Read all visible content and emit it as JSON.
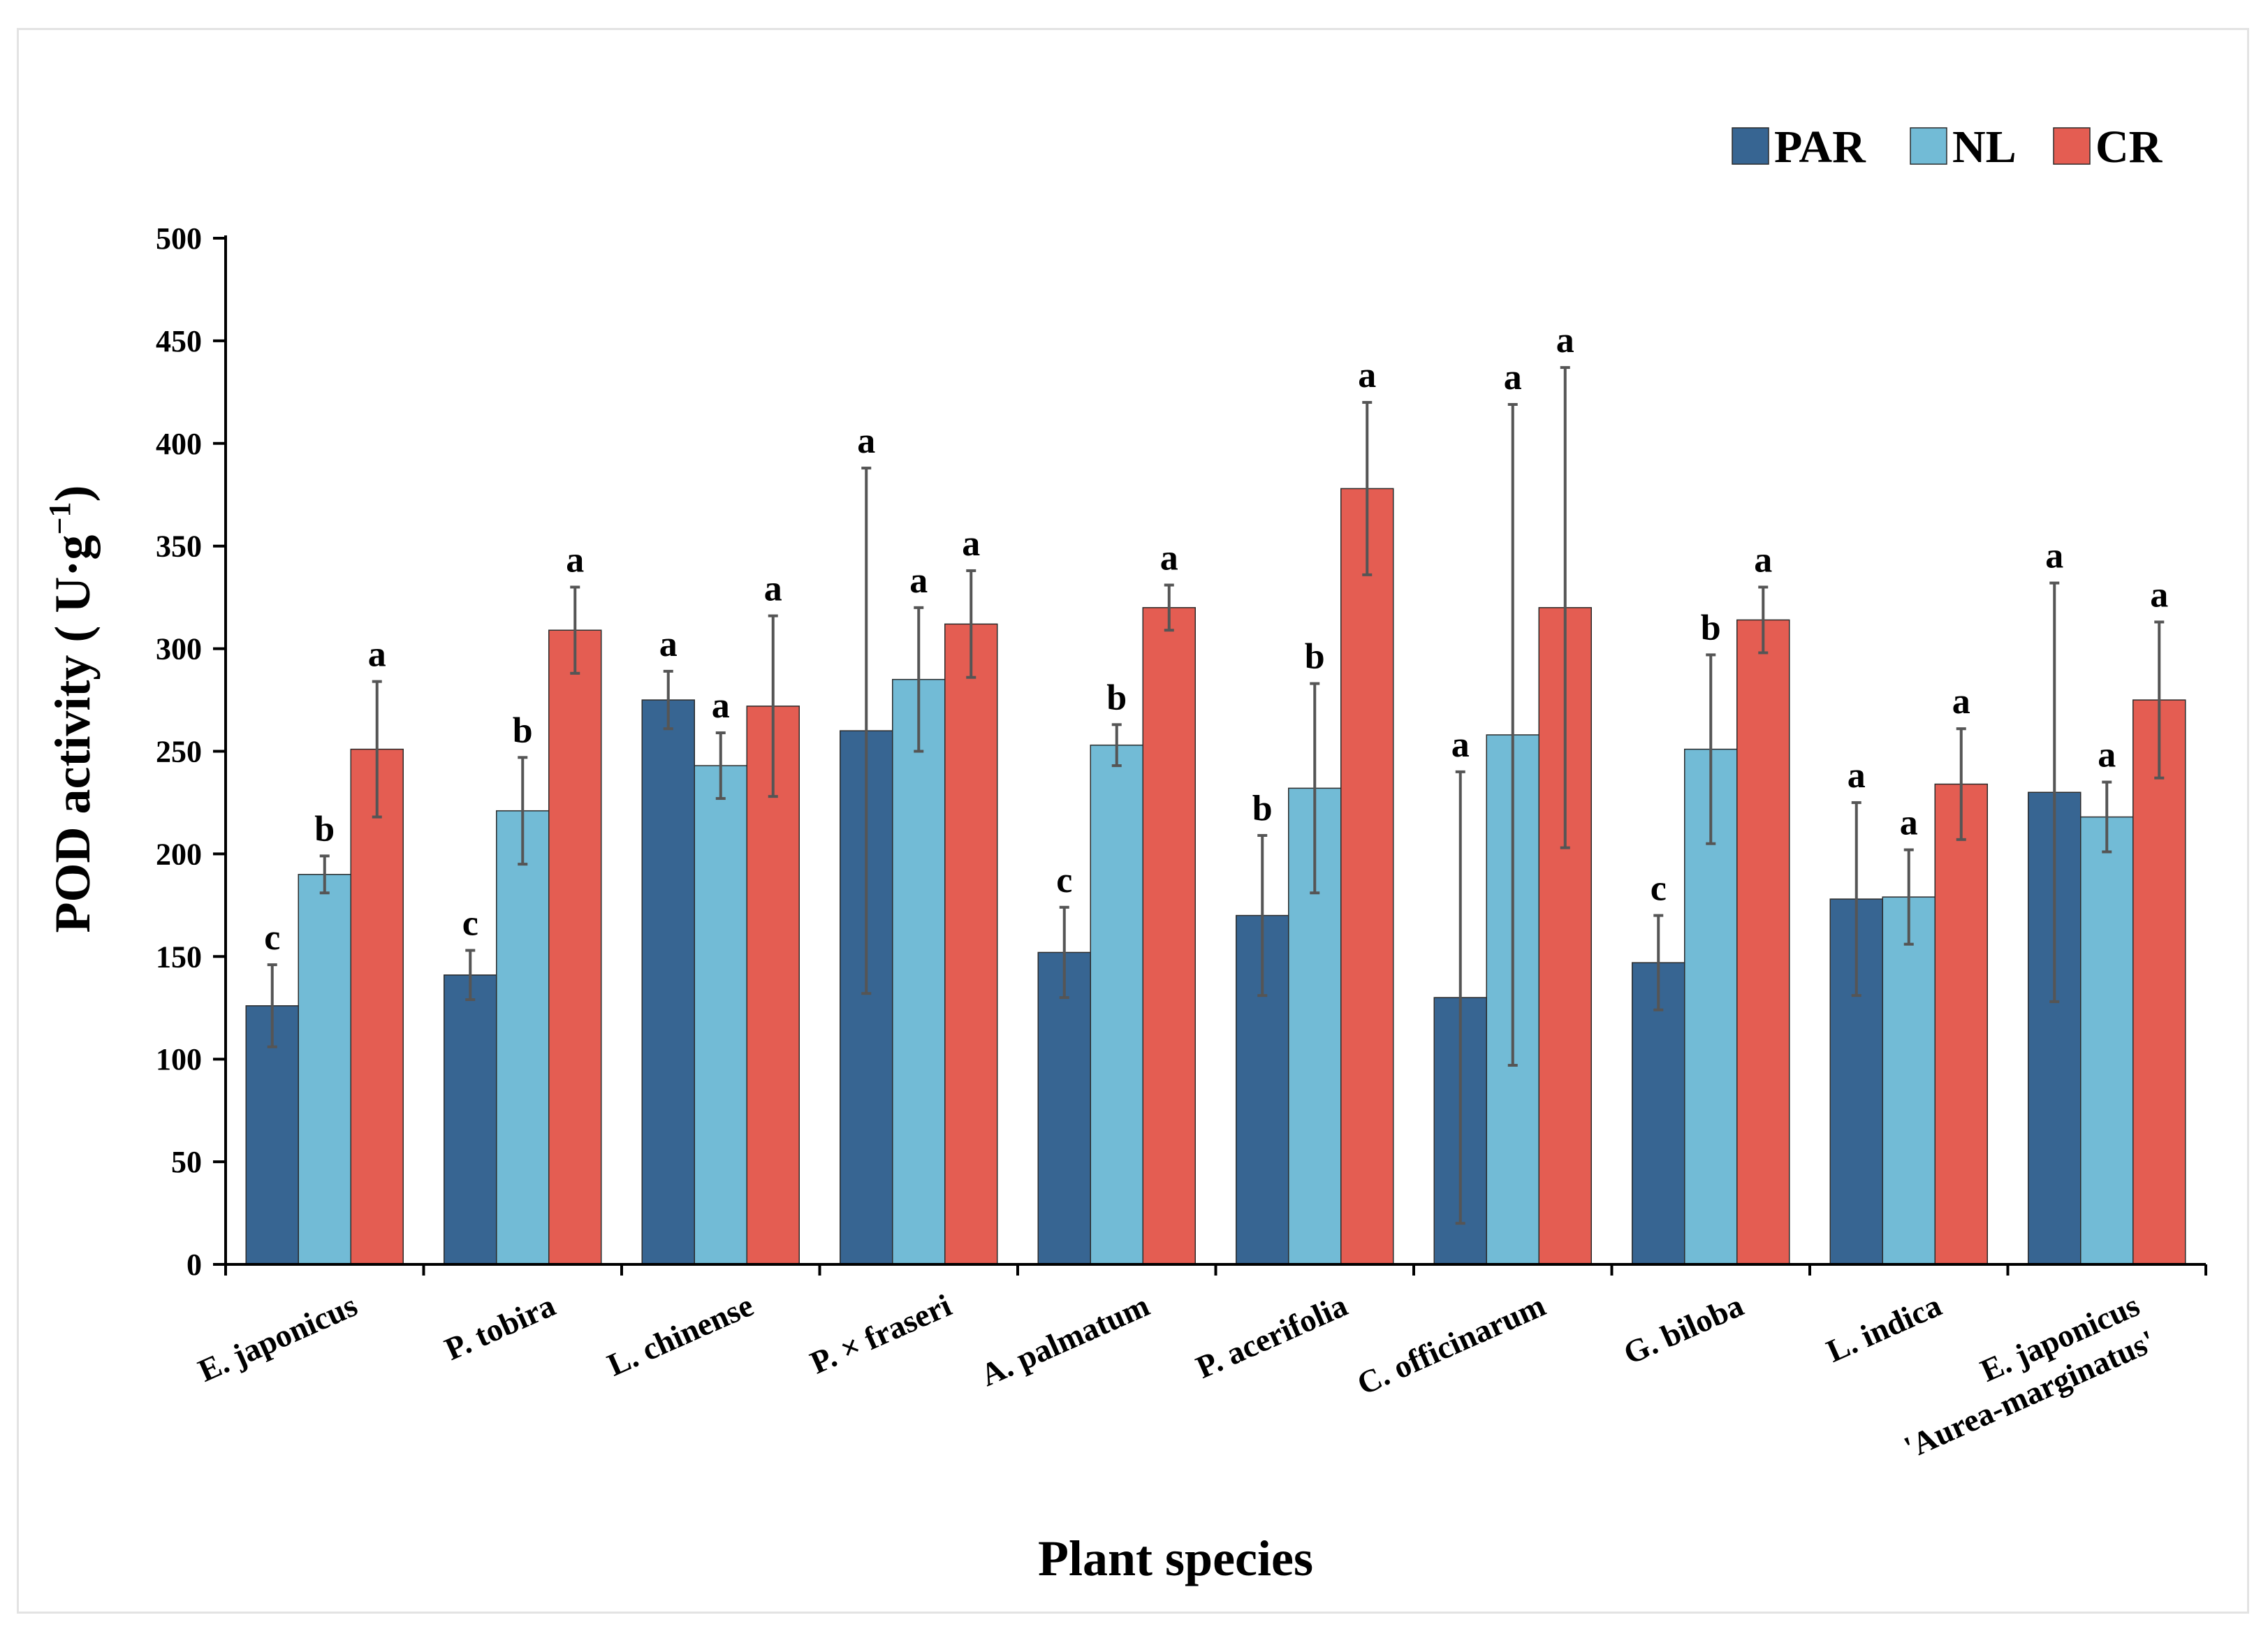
{
  "chart_data": {
    "type": "bar",
    "ylabel": "POD activity ( U·g⁻¹)",
    "ylabel_main": "POD activity ( U·g",
    "ylabel_sup": "−1",
    "ylabel_end": ")",
    "xlabel": "Plant species",
    "ylim": [
      0,
      500
    ],
    "yticks": [
      "0",
      "50",
      "100",
      "150",
      "200",
      "250",
      "300",
      "350",
      "400",
      "450",
      "500"
    ],
    "categories": [
      [
        "E. japonicus"
      ],
      [
        "P. tobira"
      ],
      [
        "L. chinense"
      ],
      [
        "P. × fraseri"
      ],
      [
        "A. palmatum"
      ],
      [
        "P. acerifolia"
      ],
      [
        "C. officinarum"
      ],
      [
        "G. biloba"
      ],
      [
        "L. indica"
      ],
      [
        "E. japonicus",
        "'Aurea-marginatus'"
      ]
    ],
    "legend_position": "top-right",
    "series": [
      {
        "name": "PAR",
        "color": "#376592",
        "values": [
          126,
          141,
          275,
          260,
          152,
          170,
          130,
          147,
          178,
          230
        ],
        "errors": [
          20,
          12,
          14,
          128,
          22,
          39,
          110,
          23,
          47,
          102
        ],
        "labels": [
          "c",
          "c",
          "a",
          "a",
          "c",
          "b",
          "a",
          "c",
          "a",
          "a"
        ]
      },
      {
        "name": "NL",
        "color": "#72bbd6",
        "values": [
          190,
          221,
          243,
          285,
          253,
          232,
          258,
          251,
          179,
          218
        ],
        "errors": [
          9,
          26,
          16,
          35,
          10,
          51,
          161,
          46,
          23,
          17
        ],
        "labels": [
          "b",
          "b",
          "a",
          "a",
          "b",
          "b",
          "a",
          "b",
          "a",
          "a"
        ]
      },
      {
        "name": "CR",
        "color": "#e45d52",
        "values": [
          251,
          309,
          272,
          312,
          320,
          378,
          320,
          314,
          234,
          275
        ],
        "errors": [
          33,
          21,
          44,
          26,
          11,
          42,
          117,
          16,
          27,
          38
        ],
        "labels": [
          "a",
          "a",
          "a",
          "a",
          "a",
          "a",
          "a",
          "a",
          "a",
          "a"
        ]
      }
    ]
  }
}
